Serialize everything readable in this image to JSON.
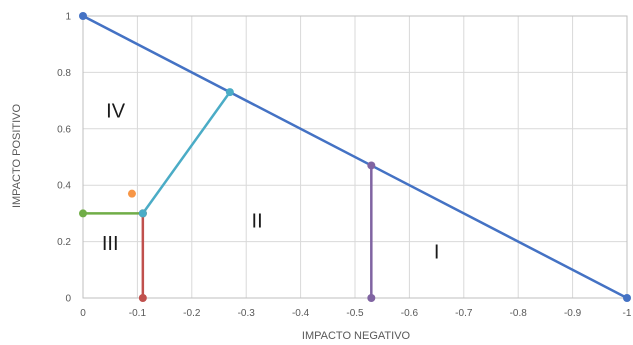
{
  "chart_data": {
    "type": "line",
    "xlabel": "IMPACTO NEGATIVO",
    "ylabel": "IMPACTO POSITIVO",
    "xlim": [
      0,
      -1
    ],
    "ylim": [
      0,
      1
    ],
    "x_ticks": [
      "0",
      "-0.1",
      "-0.2",
      "-0.3",
      "-0.4",
      "-0.5",
      "-0.6",
      "-0.7",
      "-0.8",
      "-0.9",
      "-1"
    ],
    "y_ticks": [
      "0",
      "0.2",
      "0.4",
      "0.6",
      "0.8",
      "1"
    ],
    "grid": true,
    "series": [
      {
        "color": "#4472c4",
        "points": [
          [
            0,
            1
          ],
          [
            -1,
            0
          ]
        ]
      },
      {
        "color": "#70ad47",
        "points": [
          [
            0,
            0.3
          ],
          [
            -0.11,
            0.3
          ]
        ]
      },
      {
        "color": "#c0504d",
        "points": [
          [
            -0.11,
            0.3
          ],
          [
            -0.11,
            0
          ]
        ]
      },
      {
        "color": "#4bacc6",
        "points": [
          [
            -0.11,
            0.3
          ],
          [
            -0.27,
            0.73
          ]
        ]
      },
      {
        "color": "#8064a2",
        "points": [
          [
            -0.53,
            0.47
          ],
          [
            -0.53,
            0
          ]
        ]
      },
      {
        "color": "#f79646",
        "points": [
          [
            -0.09,
            0.37
          ]
        ]
      }
    ],
    "annotations": [
      {
        "text": "IV",
        "x": -0.06,
        "y": 0.64
      },
      {
        "text": "III",
        "x": -0.05,
        "y": 0.17
      },
      {
        "text": "II",
        "x": -0.32,
        "y": 0.25
      },
      {
        "text": "I",
        "x": -0.65,
        "y": 0.14
      }
    ]
  }
}
